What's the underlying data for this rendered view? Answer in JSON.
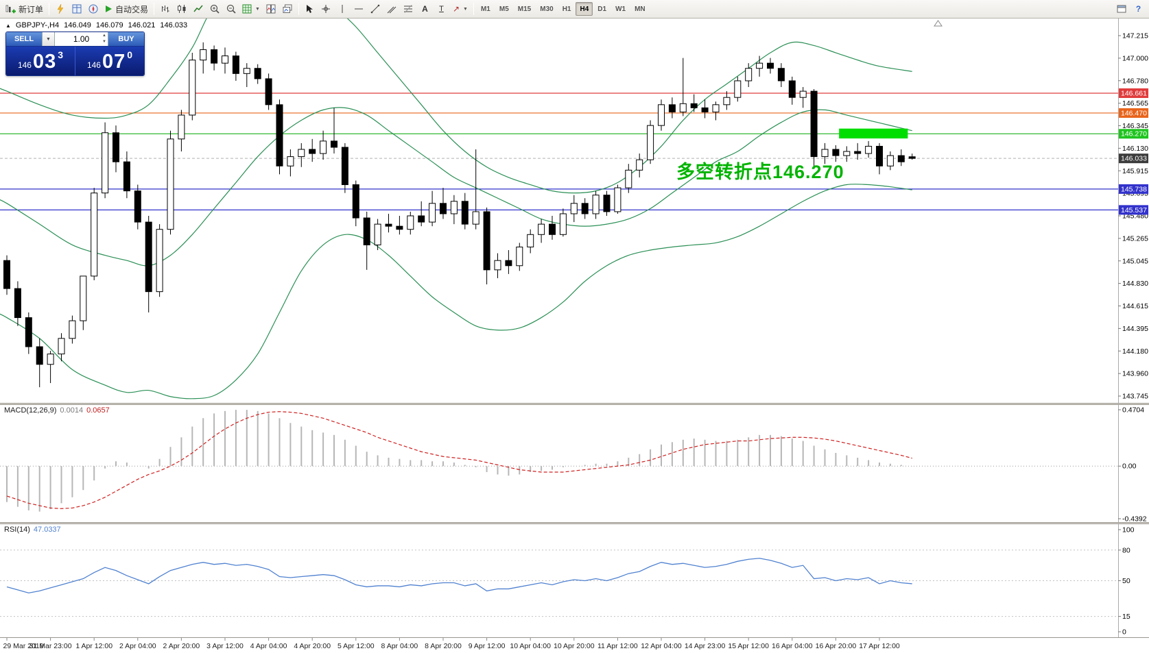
{
  "toolbar": {
    "new_order_label": "新订单",
    "auto_trading_label": "自动交易",
    "timeframes": [
      "M1",
      "M5",
      "M15",
      "M30",
      "H1",
      "H4",
      "D1",
      "W1",
      "MN"
    ],
    "active_timeframe": "H4"
  },
  "one_click": {
    "sell_label": "SELL",
    "buy_label": "BUY",
    "volume": "1.00",
    "sell_price": {
      "prefix": "146",
      "big": "03",
      "sup": "3"
    },
    "buy_price": {
      "prefix": "146",
      "big": "07",
      "sup": "0"
    }
  },
  "chart_header": {
    "collapse_marker": "▲",
    "symbol_period": "GBPJPY-,H4",
    "o": "146.049",
    "h": "146.079",
    "l": "146.021",
    "c": "146.033"
  },
  "indicators": {
    "macd": {
      "label": "MACD(12,26,9)",
      "value_main": "0.0014",
      "value_signal": "0.0657",
      "axis": [
        "0.4704",
        "0.00",
        "-0.4392"
      ]
    },
    "rsi": {
      "label": "RSI(14)",
      "value": "47.0337",
      "axis": [
        "100",
        "80",
        "50",
        "15",
        "0"
      ],
      "levels": [
        80,
        50,
        15
      ]
    }
  },
  "chart_data": {
    "type": "candlestick",
    "symbol": "GBPJPY-",
    "timeframe": "H4",
    "y_ticks": [
      "147.215",
      "147.000",
      "146.780",
      "146.565",
      "146.345",
      "146.130",
      "145.915",
      "145.695",
      "145.480",
      "145.265",
      "145.045",
      "144.830",
      "144.615",
      "144.395",
      "144.180",
      "143.960",
      "143.745"
    ],
    "x_labels": [
      "29 Mar 2019",
      "31 Mar 23:00",
      "1 Apr 12:00",
      "2 Apr 04:00",
      "2 Apr 20:00",
      "3 Apr 12:00",
      "4 Apr 04:00",
      "4 Apr 20:00",
      "5 Apr 12:00",
      "8 Apr 04:00",
      "8 Apr 20:00",
      "9 Apr 12:00",
      "10 Apr 04:00",
      "10 Apr 20:00",
      "11 Apr 12:00",
      "12 Apr 04:00",
      "14 Apr 23:00",
      "15 Apr 12:00",
      "16 Apr 04:00",
      "16 Apr 20:00",
      "17 Apr 12:00"
    ],
    "candles": [
      [
        145.05,
        145.1,
        144.72,
        144.78
      ],
      [
        144.78,
        144.85,
        144.42,
        144.5
      ],
      [
        144.5,
        144.55,
        144.15,
        144.22
      ],
      [
        144.22,
        144.3,
        143.83,
        144.05
      ],
      [
        144.05,
        144.18,
        143.87,
        144.15
      ],
      [
        144.15,
        144.35,
        144.08,
        144.3
      ],
      [
        144.3,
        144.52,
        144.25,
        144.47
      ],
      [
        144.47,
        144.65,
        144.38,
        144.9
      ],
      [
        144.9,
        145.75,
        144.86,
        145.7
      ],
      [
        145.7,
        146.38,
        145.65,
        146.28
      ],
      [
        146.28,
        146.35,
        145.9,
        146.0
      ],
      [
        146.0,
        146.1,
        145.65,
        145.72
      ],
      [
        145.72,
        145.78,
        145.35,
        145.42
      ],
      [
        145.42,
        145.48,
        144.55,
        144.75
      ],
      [
        144.75,
        145.4,
        144.7,
        145.35
      ],
      [
        145.35,
        146.3,
        145.3,
        146.22
      ],
      [
        146.22,
        146.5,
        146.1,
        146.45
      ],
      [
        146.45,
        147.05,
        146.4,
        146.98
      ],
      [
        146.98,
        147.15,
        146.85,
        147.08
      ],
      [
        147.08,
        147.12,
        146.88,
        146.95
      ],
      [
        146.95,
        147.1,
        146.85,
        147.02
      ],
      [
        147.02,
        147.06,
        146.78,
        146.85
      ],
      [
        146.85,
        146.95,
        146.72,
        146.9
      ],
      [
        146.9,
        146.94,
        146.75,
        146.8
      ],
      [
        146.8,
        146.85,
        146.5,
        146.55
      ],
      [
        146.55,
        146.6,
        145.88,
        145.96
      ],
      [
        145.96,
        146.12,
        145.86,
        146.05
      ],
      [
        146.05,
        146.18,
        145.95,
        146.12
      ],
      [
        146.12,
        146.22,
        146.0,
        146.08
      ],
      [
        146.08,
        146.3,
        146.02,
        146.2
      ],
      [
        146.2,
        146.52,
        146.08,
        146.14
      ],
      [
        146.14,
        146.18,
        145.7,
        145.78
      ],
      [
        145.78,
        145.82,
        145.38,
        145.46
      ],
      [
        145.46,
        145.52,
        144.96,
        145.2
      ],
      [
        145.2,
        145.45,
        145.15,
        145.4
      ],
      [
        145.4,
        145.5,
        145.32,
        145.38
      ],
      [
        145.38,
        145.48,
        145.3,
        145.35
      ],
      [
        145.35,
        145.52,
        145.3,
        145.48
      ],
      [
        145.48,
        145.62,
        145.38,
        145.42
      ],
      [
        145.42,
        145.72,
        145.38,
        145.6
      ],
      [
        145.6,
        145.75,
        145.45,
        145.5
      ],
      [
        145.5,
        145.68,
        145.4,
        145.62
      ],
      [
        145.62,
        145.7,
        145.35,
        145.4
      ],
      [
        145.4,
        146.12,
        145.35,
        145.52
      ],
      [
        145.52,
        145.56,
        144.82,
        144.96
      ],
      [
        144.96,
        145.12,
        144.88,
        145.05
      ],
      [
        145.05,
        145.15,
        144.92,
        145.0
      ],
      [
        145.0,
        145.22,
        144.95,
        145.18
      ],
      [
        145.18,
        145.35,
        145.12,
        145.3
      ],
      [
        145.3,
        145.45,
        145.22,
        145.4
      ],
      [
        145.4,
        145.48,
        145.25,
        145.3
      ],
      [
        145.3,
        145.55,
        145.28,
        145.5
      ],
      [
        145.5,
        145.68,
        145.42,
        145.6
      ],
      [
        145.6,
        145.65,
        145.45,
        145.5
      ],
      [
        145.5,
        145.72,
        145.45,
        145.68
      ],
      [
        145.68,
        145.72,
        145.48,
        145.52
      ],
      [
        145.52,
        145.78,
        145.5,
        145.75
      ],
      [
        145.75,
        145.98,
        145.7,
        145.92
      ],
      [
        145.92,
        146.08,
        145.85,
        146.02
      ],
      [
        146.02,
        146.4,
        145.98,
        146.35
      ],
      [
        146.35,
        146.6,
        146.3,
        146.55
      ],
      [
        146.55,
        146.62,
        146.42,
        146.48
      ],
      [
        146.48,
        147.0,
        146.44,
        146.56
      ],
      [
        146.56,
        146.65,
        146.48,
        146.52
      ],
      [
        146.52,
        146.6,
        146.42,
        146.48
      ],
      [
        146.48,
        146.58,
        146.4,
        146.55
      ],
      [
        146.55,
        146.68,
        146.5,
        146.62
      ],
      [
        146.62,
        146.82,
        146.58,
        146.78
      ],
      [
        146.78,
        146.95,
        146.72,
        146.9
      ],
      [
        146.9,
        147.02,
        146.82,
        146.95
      ],
      [
        146.95,
        147.0,
        146.85,
        146.9
      ],
      [
        146.9,
        146.95,
        146.72,
        146.78
      ],
      [
        146.78,
        146.82,
        146.55,
        146.62
      ],
      [
        146.62,
        146.72,
        146.52,
        146.68
      ],
      [
        146.68,
        146.7,
        145.95,
        146.05
      ],
      [
        146.05,
        146.18,
        145.98,
        146.12
      ],
      [
        146.12,
        146.16,
        146.0,
        146.06
      ],
      [
        146.06,
        146.15,
        146.0,
        146.1
      ],
      [
        146.1,
        146.18,
        146.02,
        146.08
      ],
      [
        146.08,
        146.2,
        146.04,
        146.15
      ],
      [
        146.15,
        146.18,
        145.88,
        145.96
      ],
      [
        145.96,
        146.1,
        145.92,
        146.06
      ],
      [
        146.06,
        146.12,
        145.96,
        146.0
      ],
      [
        146.049,
        146.079,
        146.021,
        146.033
      ]
    ],
    "bollinger": {
      "color": "#2a8f55",
      "upper": [
        [
          -1,
          146.72
        ],
        [
          0,
          146.68
        ],
        [
          3,
          146.55
        ],
        [
          6,
          146.45
        ],
        [
          9,
          146.42
        ],
        [
          11,
          146.45
        ],
        [
          13,
          146.55
        ],
        [
          15,
          146.8
        ],
        [
          17,
          147.1
        ],
        [
          19,
          147.5
        ],
        [
          22,
          147.8
        ],
        [
          25,
          147.85
        ],
        [
          28,
          147.7
        ],
        [
          30,
          147.5
        ],
        [
          32,
          147.3
        ],
        [
          34,
          147.05
        ],
        [
          36,
          146.8
        ],
        [
          38,
          146.55
        ],
        [
          40,
          146.3
        ],
        [
          42,
          146.1
        ],
        [
          44,
          145.95
        ],
        [
          46,
          145.85
        ],
        [
          48,
          145.78
        ],
        [
          50,
          145.72
        ],
        [
          52,
          145.7
        ],
        [
          54,
          145.72
        ],
        [
          56,
          145.8
        ],
        [
          58,
          145.95
        ],
        [
          60,
          146.15
        ],
        [
          62,
          146.4
        ],
        [
          64,
          146.6
        ],
        [
          66,
          146.75
        ],
        [
          68,
          146.9
        ],
        [
          70,
          147.05
        ],
        [
          72,
          147.15
        ],
        [
          74,
          147.12
        ],
        [
          76,
          147.05
        ],
        [
          78,
          146.98
        ],
        [
          80,
          146.92
        ],
        [
          83,
          146.87
        ]
      ],
      "middle": [
        [
          -1,
          145.65
        ],
        [
          0,
          145.6
        ],
        [
          3,
          145.4
        ],
        [
          6,
          145.2
        ],
        [
          9,
          145.1
        ],
        [
          11,
          145.05
        ],
        [
          13,
          145.0
        ],
        [
          15,
          145.1
        ],
        [
          17,
          145.3
        ],
        [
          19,
          145.55
        ],
        [
          21,
          145.8
        ],
        [
          23,
          146.05
        ],
        [
          25,
          146.25
        ],
        [
          27,
          146.4
        ],
        [
          29,
          146.5
        ],
        [
          31,
          146.52
        ],
        [
          33,
          146.45
        ],
        [
          35,
          146.3
        ],
        [
          37,
          146.15
        ],
        [
          39,
          146.0
        ],
        [
          41,
          145.85
        ],
        [
          43,
          145.75
        ],
        [
          45,
          145.65
        ],
        [
          47,
          145.55
        ],
        [
          49,
          145.45
        ],
        [
          51,
          145.4
        ],
        [
          53,
          145.38
        ],
        [
          55,
          145.4
        ],
        [
          57,
          145.45
        ],
        [
          59,
          145.55
        ],
        [
          61,
          145.7
        ],
        [
          63,
          145.85
        ],
        [
          65,
          146.0
        ],
        [
          67,
          146.1
        ],
        [
          69,
          146.25
        ],
        [
          71,
          146.38
        ],
        [
          73,
          146.48
        ],
        [
          75,
          146.5
        ],
        [
          77,
          146.45
        ],
        [
          79,
          146.4
        ],
        [
          81,
          146.35
        ],
        [
          83,
          146.3
        ]
      ],
      "lower": [
        [
          -1,
          144.55
        ],
        [
          0,
          144.5
        ],
        [
          3,
          144.3
        ],
        [
          6,
          144.0
        ],
        [
          9,
          143.85
        ],
        [
          11,
          143.78
        ],
        [
          13,
          143.8
        ],
        [
          15,
          143.74
        ],
        [
          17,
          143.72
        ],
        [
          19,
          143.75
        ],
        [
          21,
          143.9
        ],
        [
          23,
          144.15
        ],
        [
          25,
          144.55
        ],
        [
          27,
          144.95
        ],
        [
          29,
          145.2
        ],
        [
          31,
          145.3
        ],
        [
          33,
          145.25
        ],
        [
          35,
          145.1
        ],
        [
          37,
          144.9
        ],
        [
          39,
          144.7
        ],
        [
          41,
          144.55
        ],
        [
          43,
          144.42
        ],
        [
          45,
          144.38
        ],
        [
          47,
          144.4
        ],
        [
          49,
          144.5
        ],
        [
          51,
          144.65
        ],
        [
          53,
          144.85
        ],
        [
          55,
          145.0
        ],
        [
          57,
          145.1
        ],
        [
          59,
          145.15
        ],
        [
          61,
          145.18
        ],
        [
          63,
          145.2
        ],
        [
          65,
          145.22
        ],
        [
          67,
          145.28
        ],
        [
          69,
          145.38
        ],
        [
          71,
          145.5
        ],
        [
          73,
          145.62
        ],
        [
          75,
          145.72
        ],
        [
          77,
          145.78
        ],
        [
          79,
          145.78
        ],
        [
          81,
          145.76
        ],
        [
          83,
          145.73
        ]
      ]
    },
    "hlines": [
      {
        "price": 146.661,
        "color": "#e03c3c",
        "label": "146.661",
        "label_bg": "#e03c3c"
      },
      {
        "price": 146.47,
        "color": "#e8641c",
        "label": "146.470",
        "label_bg": "#e8641c"
      },
      {
        "price": 146.27,
        "color": "#2eb82e",
        "label": "146.270",
        "label_bg": "#1fc41f"
      },
      {
        "price": 145.738,
        "color": "#3232cc",
        "label": "145.738",
        "label_bg": "#3232cc"
      },
      {
        "price": 145.537,
        "color": "#3232cc",
        "label": "145.537",
        "label_bg": "#3232cc"
      }
    ],
    "current_price": {
      "value": 146.033,
      "label": "146.033",
      "bg": "#3c3c3c"
    },
    "highlight_rect": {
      "i1": 76.3,
      "i2": 82.6,
      "p1": 146.32,
      "p2": 146.225,
      "color": "#00dd00"
    },
    "annotation": {
      "text": "多空转折点146.270",
      "color": "#00b400"
    },
    "macd": {
      "histogram": [
        -0.3,
        -0.34,
        -0.37,
        -0.38,
        -0.36,
        -0.31,
        -0.26,
        -0.2,
        -0.12,
        -0.02,
        0.04,
        0.03,
        0.0,
        -0.02,
        0.06,
        0.16,
        0.24,
        0.33,
        0.4,
        0.44,
        0.46,
        0.47,
        0.47,
        0.46,
        0.44,
        0.4,
        0.36,
        0.33,
        0.3,
        0.28,
        0.26,
        0.22,
        0.17,
        0.12,
        0.09,
        0.07,
        0.06,
        0.05,
        0.05,
        0.04,
        0.04,
        0.03,
        0.01,
        -0.01,
        -0.05,
        -0.07,
        -0.08,
        -0.07,
        -0.05,
        -0.04,
        -0.03,
        -0.01,
        0.0,
        0.01,
        0.02,
        0.02,
        0.04,
        0.07,
        0.1,
        0.14,
        0.18,
        0.2,
        0.22,
        0.23,
        0.22,
        0.21,
        0.21,
        0.22,
        0.24,
        0.26,
        0.26,
        0.25,
        0.23,
        0.21,
        0.17,
        0.14,
        0.11,
        0.09,
        0.07,
        0.05,
        0.03,
        0.02,
        0.01,
        0.0014
      ],
      "signal": [
        -0.25,
        -0.28,
        -0.31,
        -0.33,
        -0.35,
        -0.355,
        -0.35,
        -0.33,
        -0.3,
        -0.26,
        -0.21,
        -0.16,
        -0.11,
        -0.07,
        -0.04,
        0.0,
        0.05,
        0.11,
        0.18,
        0.25,
        0.31,
        0.36,
        0.4,
        0.43,
        0.45,
        0.455,
        0.45,
        0.44,
        0.42,
        0.4,
        0.37,
        0.34,
        0.31,
        0.28,
        0.24,
        0.21,
        0.18,
        0.15,
        0.12,
        0.1,
        0.08,
        0.07,
        0.06,
        0.05,
        0.03,
        0.01,
        -0.01,
        -0.03,
        -0.04,
        -0.05,
        -0.05,
        -0.05,
        -0.04,
        -0.03,
        -0.02,
        -0.01,
        0.0,
        0.01,
        0.03,
        0.05,
        0.08,
        0.11,
        0.14,
        0.16,
        0.18,
        0.19,
        0.2,
        0.21,
        0.21,
        0.22,
        0.23,
        0.235,
        0.24,
        0.24,
        0.235,
        0.225,
        0.21,
        0.19,
        0.17,
        0.15,
        0.13,
        0.11,
        0.09,
        0.0657
      ]
    },
    "rsi": {
      "values": [
        44,
        41,
        38,
        40,
        43,
        46,
        49,
        52,
        58,
        63,
        60,
        55,
        51,
        47,
        54,
        60,
        63,
        66,
        68,
        66,
        67,
        65,
        66,
        64,
        61,
        54,
        53,
        54,
        55,
        56,
        55,
        51,
        46,
        44,
        45,
        45,
        44,
        46,
        45,
        47,
        48,
        48,
        45,
        47,
        40,
        42,
        42,
        44,
        46,
        48,
        46,
        49,
        51,
        50,
        52,
        50,
        53,
        57,
        59,
        64,
        68,
        66,
        67,
        65,
        63,
        64,
        66,
        69,
        71,
        72,
        70,
        67,
        63,
        65,
        52,
        53,
        50,
        52,
        51,
        53,
        47,
        50,
        48,
        47.0337
      ]
    }
  }
}
